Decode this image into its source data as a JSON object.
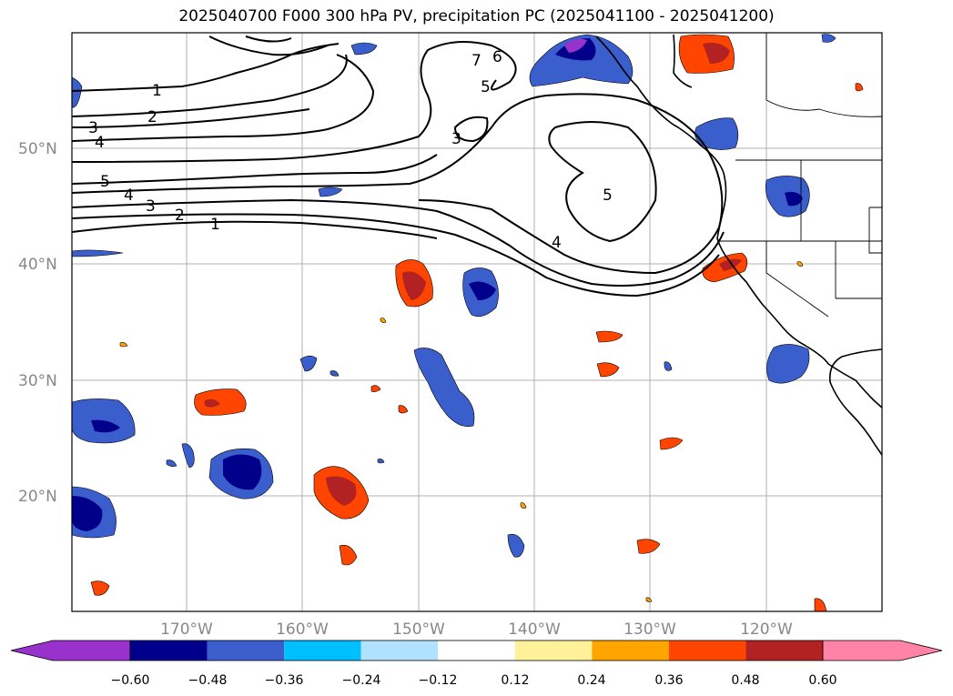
{
  "title": "2025040700 F000 300 hPa PV, precipitation PC (2025041100 - 2025041200)",
  "lat_labels": [
    "50°N",
    "40°N",
    "30°N",
    "20°N"
  ],
  "lon_labels": [
    "170°W",
    "160°W",
    "150°W",
    "140°W",
    "130°W",
    "120°W"
  ],
  "colorbar": {
    "colors": [
      "#9932cc",
      "#00008b",
      "#3a5fcd",
      "#00bfff",
      "#b0e2ff",
      "#ffffff",
      "#fff09a",
      "#ffa500",
      "#ff4500",
      "#b22222",
      "#ff83a6"
    ],
    "tick_labels": [
      "−0.60",
      "−0.48",
      "−0.36",
      "−0.24",
      "−0.12",
      "0.12",
      "0.24",
      "0.36",
      "0.48",
      "0.60"
    ]
  },
  "contour_labels": [
    "1",
    "2",
    "3",
    "4",
    "5",
    "4",
    "3",
    "2",
    "1",
    "5",
    "5",
    "4",
    "3",
    "6",
    "7"
  ]
}
